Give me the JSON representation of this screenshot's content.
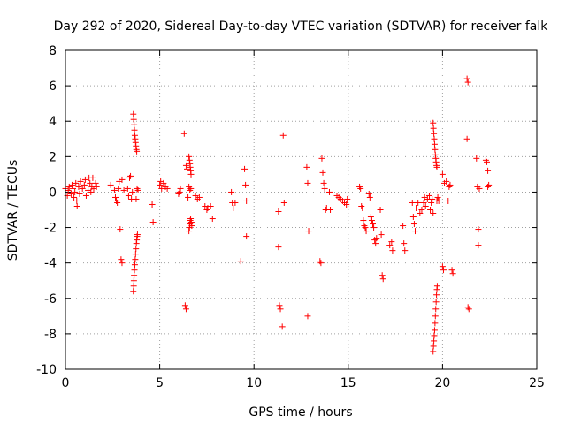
{
  "chart_data": {
    "type": "scatter",
    "title": "Day 292 of 2020, Sidereal Day-to-day VTEC variation (SDTVAR) for receiver falk",
    "xlabel": "GPS time / hours",
    "ylabel": "SDTVAR / TECUs",
    "xlim": [
      0,
      25
    ],
    "ylim": [
      -10,
      8
    ],
    "xticks": [
      0,
      5,
      10,
      15,
      20,
      25
    ],
    "yticks": [
      -10,
      -8,
      -6,
      -4,
      -2,
      0,
      2,
      4,
      6,
      8
    ],
    "grid": true,
    "marker": "+",
    "color": "#ff0000",
    "series": [
      {
        "name": "SDTVAR",
        "points": [
          [
            0.0,
            0.2
          ],
          [
            0.1,
            -0.2
          ],
          [
            0.15,
            0.1
          ],
          [
            0.2,
            0.3
          ],
          [
            0.3,
            -0.1
          ],
          [
            0.35,
            0.4
          ],
          [
            0.4,
            0.2
          ],
          [
            0.45,
            -0.3
          ],
          [
            0.5,
            0.0
          ],
          [
            0.55,
            0.5
          ],
          [
            0.6,
            -0.5
          ],
          [
            0.62,
            -0.8
          ],
          [
            0.7,
            0.3
          ],
          [
            0.75,
            -0.1
          ],
          [
            0.8,
            0.6
          ],
          [
            0.9,
            0.2
          ],
          [
            1.0,
            0.4
          ],
          [
            1.05,
            0.7
          ],
          [
            1.1,
            -0.2
          ],
          [
            1.2,
            0.1
          ],
          [
            1.25,
            0.8
          ],
          [
            1.3,
            0.5
          ],
          [
            1.35,
            0.0
          ],
          [
            1.4,
            0.3
          ],
          [
            1.45,
            0.8
          ],
          [
            1.5,
            0.2
          ],
          [
            1.6,
            0.5
          ],
          [
            1.65,
            0.3
          ],
          [
            2.4,
            0.4
          ],
          [
            2.6,
            0.1
          ],
          [
            2.65,
            -0.3
          ],
          [
            2.7,
            -0.5
          ],
          [
            2.75,
            -0.6
          ],
          [
            2.8,
            0.2
          ],
          [
            2.85,
            0.6
          ],
          [
            2.9,
            -2.1
          ],
          [
            2.95,
            -3.8
          ],
          [
            3.0,
            -4.0
          ],
          [
            3.0,
            0.7
          ],
          [
            3.1,
            0.1
          ],
          [
            3.3,
            0.2
          ],
          [
            3.35,
            -0.2
          ],
          [
            3.4,
            0.8
          ],
          [
            3.45,
            0.9
          ],
          [
            3.5,
            -0.4
          ],
          [
            3.55,
            0.0
          ],
          [
            3.6,
            4.4
          ],
          [
            3.62,
            4.1
          ],
          [
            3.64,
            3.8
          ],
          [
            3.66,
            3.5
          ],
          [
            3.68,
            3.2
          ],
          [
            3.7,
            3.0
          ],
          [
            3.72,
            2.8
          ],
          [
            3.74,
            2.6
          ],
          [
            3.76,
            2.4
          ],
          [
            3.78,
            2.3
          ],
          [
            3.6,
            -5.6
          ],
          [
            3.62,
            -5.3
          ],
          [
            3.63,
            -5.0
          ],
          [
            3.64,
            -4.7
          ],
          [
            3.66,
            -4.4
          ],
          [
            3.68,
            -4.1
          ],
          [
            3.7,
            -3.8
          ],
          [
            3.72,
            -3.5
          ],
          [
            3.74,
            -3.2
          ],
          [
            3.76,
            -2.9
          ],
          [
            3.78,
            -2.7
          ],
          [
            3.8,
            -2.5
          ],
          [
            3.82,
            -2.4
          ],
          [
            3.75,
            -0.4
          ],
          [
            3.85,
            0.1
          ],
          [
            3.8,
            0.2
          ],
          [
            4.6,
            -0.7
          ],
          [
            4.65,
            -1.7
          ],
          [
            5.0,
            0.4
          ],
          [
            5.05,
            0.6
          ],
          [
            5.1,
            0.2
          ],
          [
            5.2,
            0.5
          ],
          [
            5.3,
            0.3
          ],
          [
            5.4,
            0.2
          ],
          [
            6.0,
            -0.1
          ],
          [
            6.05,
            0.0
          ],
          [
            6.1,
            0.2
          ],
          [
            6.3,
            3.3
          ],
          [
            6.35,
            -6.4
          ],
          [
            6.4,
            -6.6
          ],
          [
            6.4,
            1.5
          ],
          [
            6.45,
            1.3
          ],
          [
            6.5,
            -0.3
          ],
          [
            6.55,
            2.0
          ],
          [
            6.58,
            1.8
          ],
          [
            6.6,
            1.6
          ],
          [
            6.62,
            1.4
          ],
          [
            6.64,
            1.2
          ],
          [
            6.66,
            1.0
          ],
          [
            6.55,
            0.3
          ],
          [
            6.6,
            0.1
          ],
          [
            6.65,
            0.2
          ],
          [
            6.55,
            -2.2
          ],
          [
            6.58,
            -2.0
          ],
          [
            6.6,
            -1.8
          ],
          [
            6.62,
            -1.6
          ],
          [
            6.64,
            -1.5
          ],
          [
            6.68,
            -1.7
          ],
          [
            6.7,
            -1.9
          ],
          [
            6.9,
            -0.2
          ],
          [
            7.0,
            -0.4
          ],
          [
            7.1,
            -0.3
          ],
          [
            7.4,
            -0.8
          ],
          [
            7.5,
            -1.0
          ],
          [
            7.55,
            -0.9
          ],
          [
            7.8,
            -1.5
          ],
          [
            7.7,
            -0.8
          ],
          [
            8.8,
            0.0
          ],
          [
            8.85,
            -0.6
          ],
          [
            8.9,
            -0.9
          ],
          [
            9.0,
            -0.6
          ],
          [
            9.3,
            -3.9
          ],
          [
            9.5,
            1.3
          ],
          [
            9.55,
            0.4
          ],
          [
            9.6,
            -0.5
          ],
          [
            9.6,
            -2.5
          ],
          [
            11.3,
            -1.1
          ],
          [
            11.3,
            -3.1
          ],
          [
            11.35,
            -6.4
          ],
          [
            11.4,
            -6.6
          ],
          [
            11.5,
            -7.6
          ],
          [
            11.55,
            3.2
          ],
          [
            11.6,
            -0.6
          ],
          [
            12.8,
            1.4
          ],
          [
            12.85,
            0.5
          ],
          [
            12.9,
            -2.2
          ],
          [
            12.85,
            -7.0
          ],
          [
            13.5,
            -3.9
          ],
          [
            13.55,
            -4.0
          ],
          [
            13.6,
            1.9
          ],
          [
            13.65,
            1.1
          ],
          [
            13.7,
            0.5
          ],
          [
            13.75,
            0.2
          ],
          [
            13.8,
            -1.0
          ],
          [
            13.85,
            -0.9
          ],
          [
            14.0,
            0.0
          ],
          [
            14.05,
            -1.0
          ],
          [
            14.4,
            -0.2
          ],
          [
            14.5,
            -0.3
          ],
          [
            14.6,
            -0.4
          ],
          [
            14.7,
            -0.5
          ],
          [
            14.8,
            -0.6
          ],
          [
            14.9,
            -0.7
          ],
          [
            14.95,
            -0.4
          ],
          [
            15.6,
            0.3
          ],
          [
            15.65,
            0.2
          ],
          [
            15.7,
            -0.8
          ],
          [
            15.75,
            -0.9
          ],
          [
            15.8,
            -1.6
          ],
          [
            15.85,
            -1.9
          ],
          [
            15.9,
            -2.0
          ],
          [
            15.95,
            -2.2
          ],
          [
            16.1,
            -0.1
          ],
          [
            16.15,
            -0.3
          ],
          [
            16.2,
            -1.4
          ],
          [
            16.25,
            -1.6
          ],
          [
            16.3,
            -1.8
          ],
          [
            16.35,
            -2.0
          ],
          [
            16.4,
            -2.7
          ],
          [
            16.45,
            -2.9
          ],
          [
            16.5,
            -2.6
          ],
          [
            16.7,
            -1.0
          ],
          [
            16.75,
            -2.4
          ],
          [
            16.8,
            -4.7
          ],
          [
            16.85,
            -4.9
          ],
          [
            17.2,
            -3.0
          ],
          [
            17.3,
            -2.8
          ],
          [
            17.35,
            -3.3
          ],
          [
            17.9,
            -1.9
          ],
          [
            17.95,
            -2.9
          ],
          [
            18.0,
            -3.3
          ],
          [
            18.4,
            -0.6
          ],
          [
            18.45,
            -1.4
          ],
          [
            18.5,
            -1.8
          ],
          [
            18.55,
            -2.2
          ],
          [
            18.6,
            -0.9
          ],
          [
            18.7,
            -0.6
          ],
          [
            18.8,
            -1.2
          ],
          [
            18.9,
            -1.0
          ],
          [
            19.0,
            -0.6
          ],
          [
            19.05,
            -0.3
          ],
          [
            19.1,
            -0.8
          ],
          [
            19.2,
            -0.4
          ],
          [
            19.3,
            -0.2
          ],
          [
            19.35,
            -1.0
          ],
          [
            19.4,
            -0.6
          ],
          [
            19.45,
            -0.4
          ],
          [
            19.5,
            -1.2
          ],
          [
            19.5,
            3.9
          ],
          [
            19.52,
            3.6
          ],
          [
            19.54,
            3.3
          ],
          [
            19.56,
            3.0
          ],
          [
            19.58,
            2.7
          ],
          [
            19.6,
            2.4
          ],
          [
            19.62,
            2.1
          ],
          [
            19.64,
            1.9
          ],
          [
            19.66,
            1.7
          ],
          [
            19.68,
            1.5
          ],
          [
            19.7,
            1.4
          ],
          [
            19.5,
            -9.0
          ],
          [
            19.52,
            -8.7
          ],
          [
            19.54,
            -8.4
          ],
          [
            19.56,
            -8.1
          ],
          [
            19.58,
            -7.8
          ],
          [
            19.6,
            -7.4
          ],
          [
            19.62,
            -7.0
          ],
          [
            19.64,
            -6.6
          ],
          [
            19.66,
            -6.2
          ],
          [
            19.68,
            -5.8
          ],
          [
            19.7,
            -5.5
          ],
          [
            19.72,
            -5.3
          ],
          [
            19.7,
            -0.5
          ],
          [
            19.75,
            -0.3
          ],
          [
            19.8,
            -0.5
          ],
          [
            20.0,
            1.0
          ],
          [
            20.0,
            -4.2
          ],
          [
            20.05,
            -4.4
          ],
          [
            20.1,
            0.5
          ],
          [
            20.2,
            0.6
          ],
          [
            20.3,
            -0.5
          ],
          [
            20.35,
            0.3
          ],
          [
            20.4,
            0.4
          ],
          [
            20.5,
            -4.4
          ],
          [
            20.55,
            -4.6
          ],
          [
            21.3,
            6.4
          ],
          [
            21.35,
            6.2
          ],
          [
            21.3,
            3.0
          ],
          [
            21.35,
            -6.5
          ],
          [
            21.4,
            -6.6
          ],
          [
            21.8,
            1.9
          ],
          [
            21.85,
            0.3
          ],
          [
            21.9,
            -2.1
          ],
          [
            21.9,
            -3.0
          ],
          [
            21.95,
            0.2
          ],
          [
            22.3,
            1.8
          ],
          [
            22.35,
            1.7
          ],
          [
            22.4,
            1.2
          ],
          [
            22.45,
            0.4
          ],
          [
            22.4,
            0.3
          ]
        ]
      }
    ]
  }
}
